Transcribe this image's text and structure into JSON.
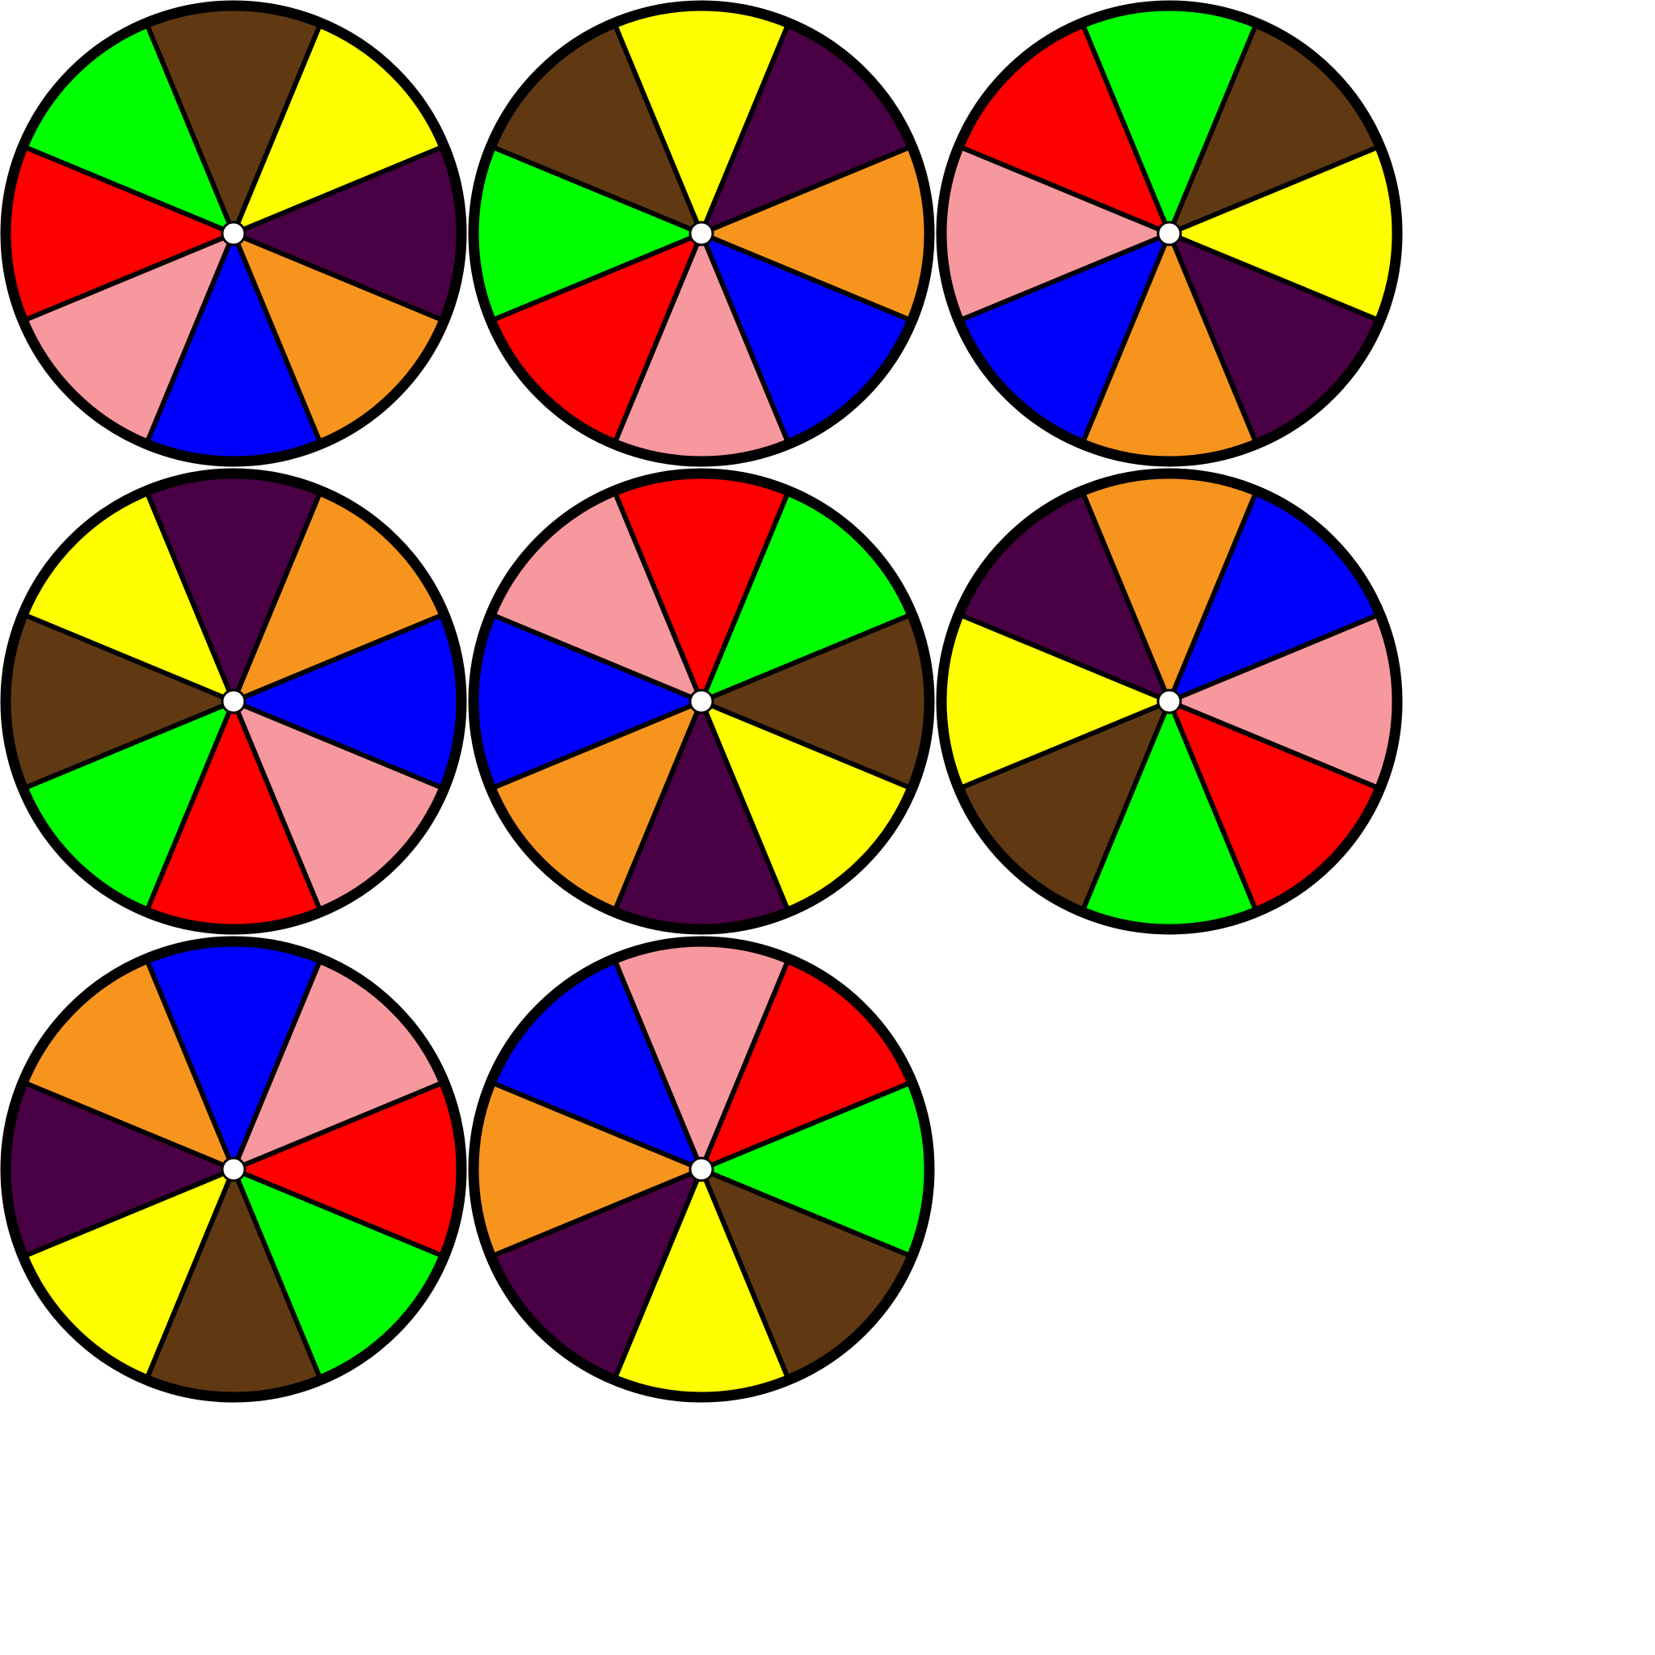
{
  "palette": {
    "brown": "#603913",
    "yellow": "#ffff00",
    "purple": "#4a0044",
    "orange": "#f7941d",
    "blue": "#0000ff",
    "pink": "#f6989d",
    "red": "#ff0000",
    "green": "#00ff00"
  },
  "hub_color": "#ffffff",
  "outline_color": "#000000",
  "spinners": [
    {
      "segments": [
        "brown",
        "yellow",
        "purple",
        "orange",
        "blue",
        "pink",
        "red",
        "green"
      ]
    },
    {
      "segments": [
        "yellow",
        "purple",
        "orange",
        "blue",
        "pink",
        "red",
        "green",
        "brown"
      ]
    },
    {
      "segments": [
        "green",
        "brown",
        "yellow",
        "purple",
        "orange",
        "blue",
        "pink",
        "red"
      ]
    },
    {
      "segments": [
        "purple",
        "orange",
        "blue",
        "pink",
        "red",
        "green",
        "brown",
        "yellow"
      ]
    },
    {
      "segments": [
        "red",
        "green",
        "brown",
        "yellow",
        "purple",
        "orange",
        "blue",
        "pink"
      ]
    },
    {
      "segments": [
        "orange",
        "blue",
        "pink",
        "red",
        "green",
        "brown",
        "yellow",
        "purple"
      ]
    },
    {
      "segments": [
        "blue",
        "pink",
        "red",
        "green",
        "brown",
        "yellow",
        "purple",
        "orange"
      ]
    },
    {
      "segments": [
        "pink",
        "red",
        "green",
        "brown",
        "yellow",
        "purple",
        "orange",
        "blue"
      ]
    }
  ]
}
